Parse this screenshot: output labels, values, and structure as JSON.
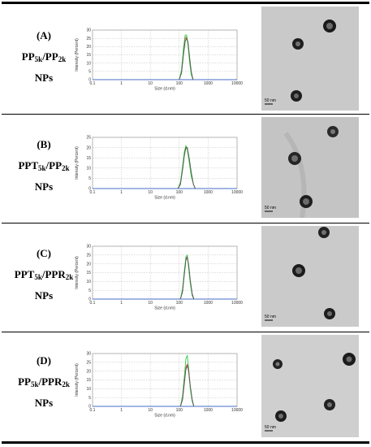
{
  "panels": [
    {
      "label_line1": "(A)",
      "label_prefix": "PP",
      "label_sub1": "5k",
      "label_mid": "/PP",
      "label_sub2": "2k",
      "label_line3": "NPs",
      "scale_bar": "50 nm"
    },
    {
      "label_line1": "(B)",
      "label_prefix": "PPT",
      "label_sub1": "5k",
      "label_mid": "/PP",
      "label_sub2": "2k",
      "label_line3": "NPs",
      "scale_bar": "50 nm"
    },
    {
      "label_line1": "(C)",
      "label_prefix": "PPT",
      "label_sub1": "5k",
      "label_mid": "/PPR",
      "label_sub2": "2k",
      "label_line3": "NPs",
      "scale_bar": "50 nm"
    },
    {
      "label_line1": "(D)",
      "label_prefix": "PP",
      "label_sub1": "5k",
      "label_mid": "/PPR",
      "label_sub2": "2k",
      "label_line3": "NPs",
      "scale_bar": "50 nm"
    }
  ],
  "chart_data": [
    {
      "type": "line",
      "xlabel": "Size (d.nm)",
      "ylabel": "Intensity (Percent)",
      "xscale": "log",
      "xlim": [
        0.1,
        10000
      ],
      "xticks": [
        "0.1",
        "1",
        "10",
        "100",
        "1000",
        "10000"
      ],
      "ylim": [
        0,
        30
      ],
      "yticks": [
        "0",
        "5",
        "10",
        "15",
        "20",
        "25",
        "30"
      ],
      "grid": true,
      "series": [
        {
          "color": "#e03030",
          "x": [
            100,
            120,
            140,
            160,
            180,
            200,
            230,
            260,
            300
          ],
          "y": [
            0,
            5,
            17,
            25,
            26,
            22,
            12,
            4,
            0
          ]
        },
        {
          "color": "#2ecc40",
          "x": [
            100,
            120,
            140,
            160,
            180,
            200,
            230,
            260,
            300
          ],
          "y": [
            0,
            6,
            19,
            27,
            27,
            21,
            10,
            3,
            0
          ]
        },
        {
          "color": "#555555",
          "x": [
            100,
            120,
            140,
            160,
            180,
            200,
            230,
            260,
            300
          ],
          "y": [
            0,
            4,
            15,
            23,
            25,
            23,
            13,
            5,
            0
          ]
        }
      ]
    },
    {
      "type": "line",
      "xlabel": "Size (d.nm)",
      "ylabel": "Intensity (Percent)",
      "xscale": "log",
      "xlim": [
        0.1,
        10000
      ],
      "xticks": [
        "0.1",
        "1",
        "10",
        "100",
        "1000",
        "10000"
      ],
      "ylim": [
        0,
        25
      ],
      "yticks": [
        "0",
        "5",
        "10",
        "15",
        "20",
        "25"
      ],
      "grid": true,
      "series": [
        {
          "color": "#e03030",
          "x": [
            90,
            110,
            130,
            150,
            170,
            190,
            220,
            260,
            310,
            360
          ],
          "y": [
            0,
            3,
            10,
            17,
            20,
            19,
            14,
            7,
            2,
            0
          ]
        },
        {
          "color": "#2ecc40",
          "x": [
            90,
            110,
            130,
            150,
            170,
            190,
            220,
            260,
            310,
            360
          ],
          "y": [
            0,
            3,
            11,
            18,
            21,
            19,
            13,
            6,
            2,
            0
          ]
        },
        {
          "color": "#555555",
          "x": [
            90,
            110,
            130,
            150,
            170,
            190,
            220,
            260,
            310,
            360
          ],
          "y": [
            0,
            2,
            9,
            16,
            20,
            20,
            15,
            8,
            2,
            0
          ]
        }
      ]
    },
    {
      "type": "line",
      "xlabel": "Size (d.nm)",
      "ylabel": "Intensity (Percent)",
      "xscale": "log",
      "xlim": [
        0.1,
        10000
      ],
      "xticks": [
        "0.1",
        "1",
        "10",
        "100",
        "1000",
        "10000"
      ],
      "ylim": [
        0,
        30
      ],
      "yticks": [
        "0",
        "5",
        "10",
        "15",
        "20",
        "25",
        "30"
      ],
      "grid": true,
      "series": [
        {
          "color": "#e03030",
          "x": [
            110,
            130,
            150,
            170,
            190,
            210,
            240,
            280,
            320
          ],
          "y": [
            0,
            5,
            15,
            23,
            24,
            19,
            10,
            3,
            0
          ]
        },
        {
          "color": "#2ecc40",
          "x": [
            110,
            130,
            150,
            170,
            190,
            210,
            240,
            280,
            320
          ],
          "y": [
            0,
            6,
            16,
            24,
            25,
            18,
            9,
            2,
            0
          ]
        },
        {
          "color": "#555555",
          "x": [
            110,
            130,
            150,
            170,
            190,
            210,
            240,
            280,
            320
          ],
          "y": [
            0,
            4,
            14,
            22,
            24,
            20,
            11,
            3,
            0
          ]
        }
      ]
    },
    {
      "type": "line",
      "xlabel": "Size (d.nm)",
      "ylabel": "Intensity (Percent)",
      "xscale": "log",
      "xlim": [
        0.1,
        10000
      ],
      "xticks": [
        "0.1",
        "1",
        "10",
        "100",
        "1000",
        "10000"
      ],
      "ylim": [
        0,
        30
      ],
      "yticks": [
        "0",
        "5",
        "10",
        "15",
        "20",
        "25",
        "30"
      ],
      "grid": true,
      "series": [
        {
          "color": "#e03030",
          "x": [
            110,
            130,
            150,
            170,
            190,
            210,
            240,
            280,
            320
          ],
          "y": [
            0,
            4,
            13,
            22,
            24,
            20,
            11,
            3,
            0
          ]
        },
        {
          "color": "#2ecc40",
          "x": [
            110,
            130,
            150,
            170,
            190,
            210,
            240,
            280,
            320
          ],
          "y": [
            0,
            6,
            17,
            27,
            29,
            22,
            10,
            3,
            0
          ]
        },
        {
          "color": "#555555",
          "x": [
            110,
            130,
            150,
            170,
            190,
            210,
            240,
            280,
            320
          ],
          "y": [
            0,
            4,
            14,
            21,
            23,
            21,
            12,
            4,
            0
          ]
        }
      ]
    }
  ]
}
